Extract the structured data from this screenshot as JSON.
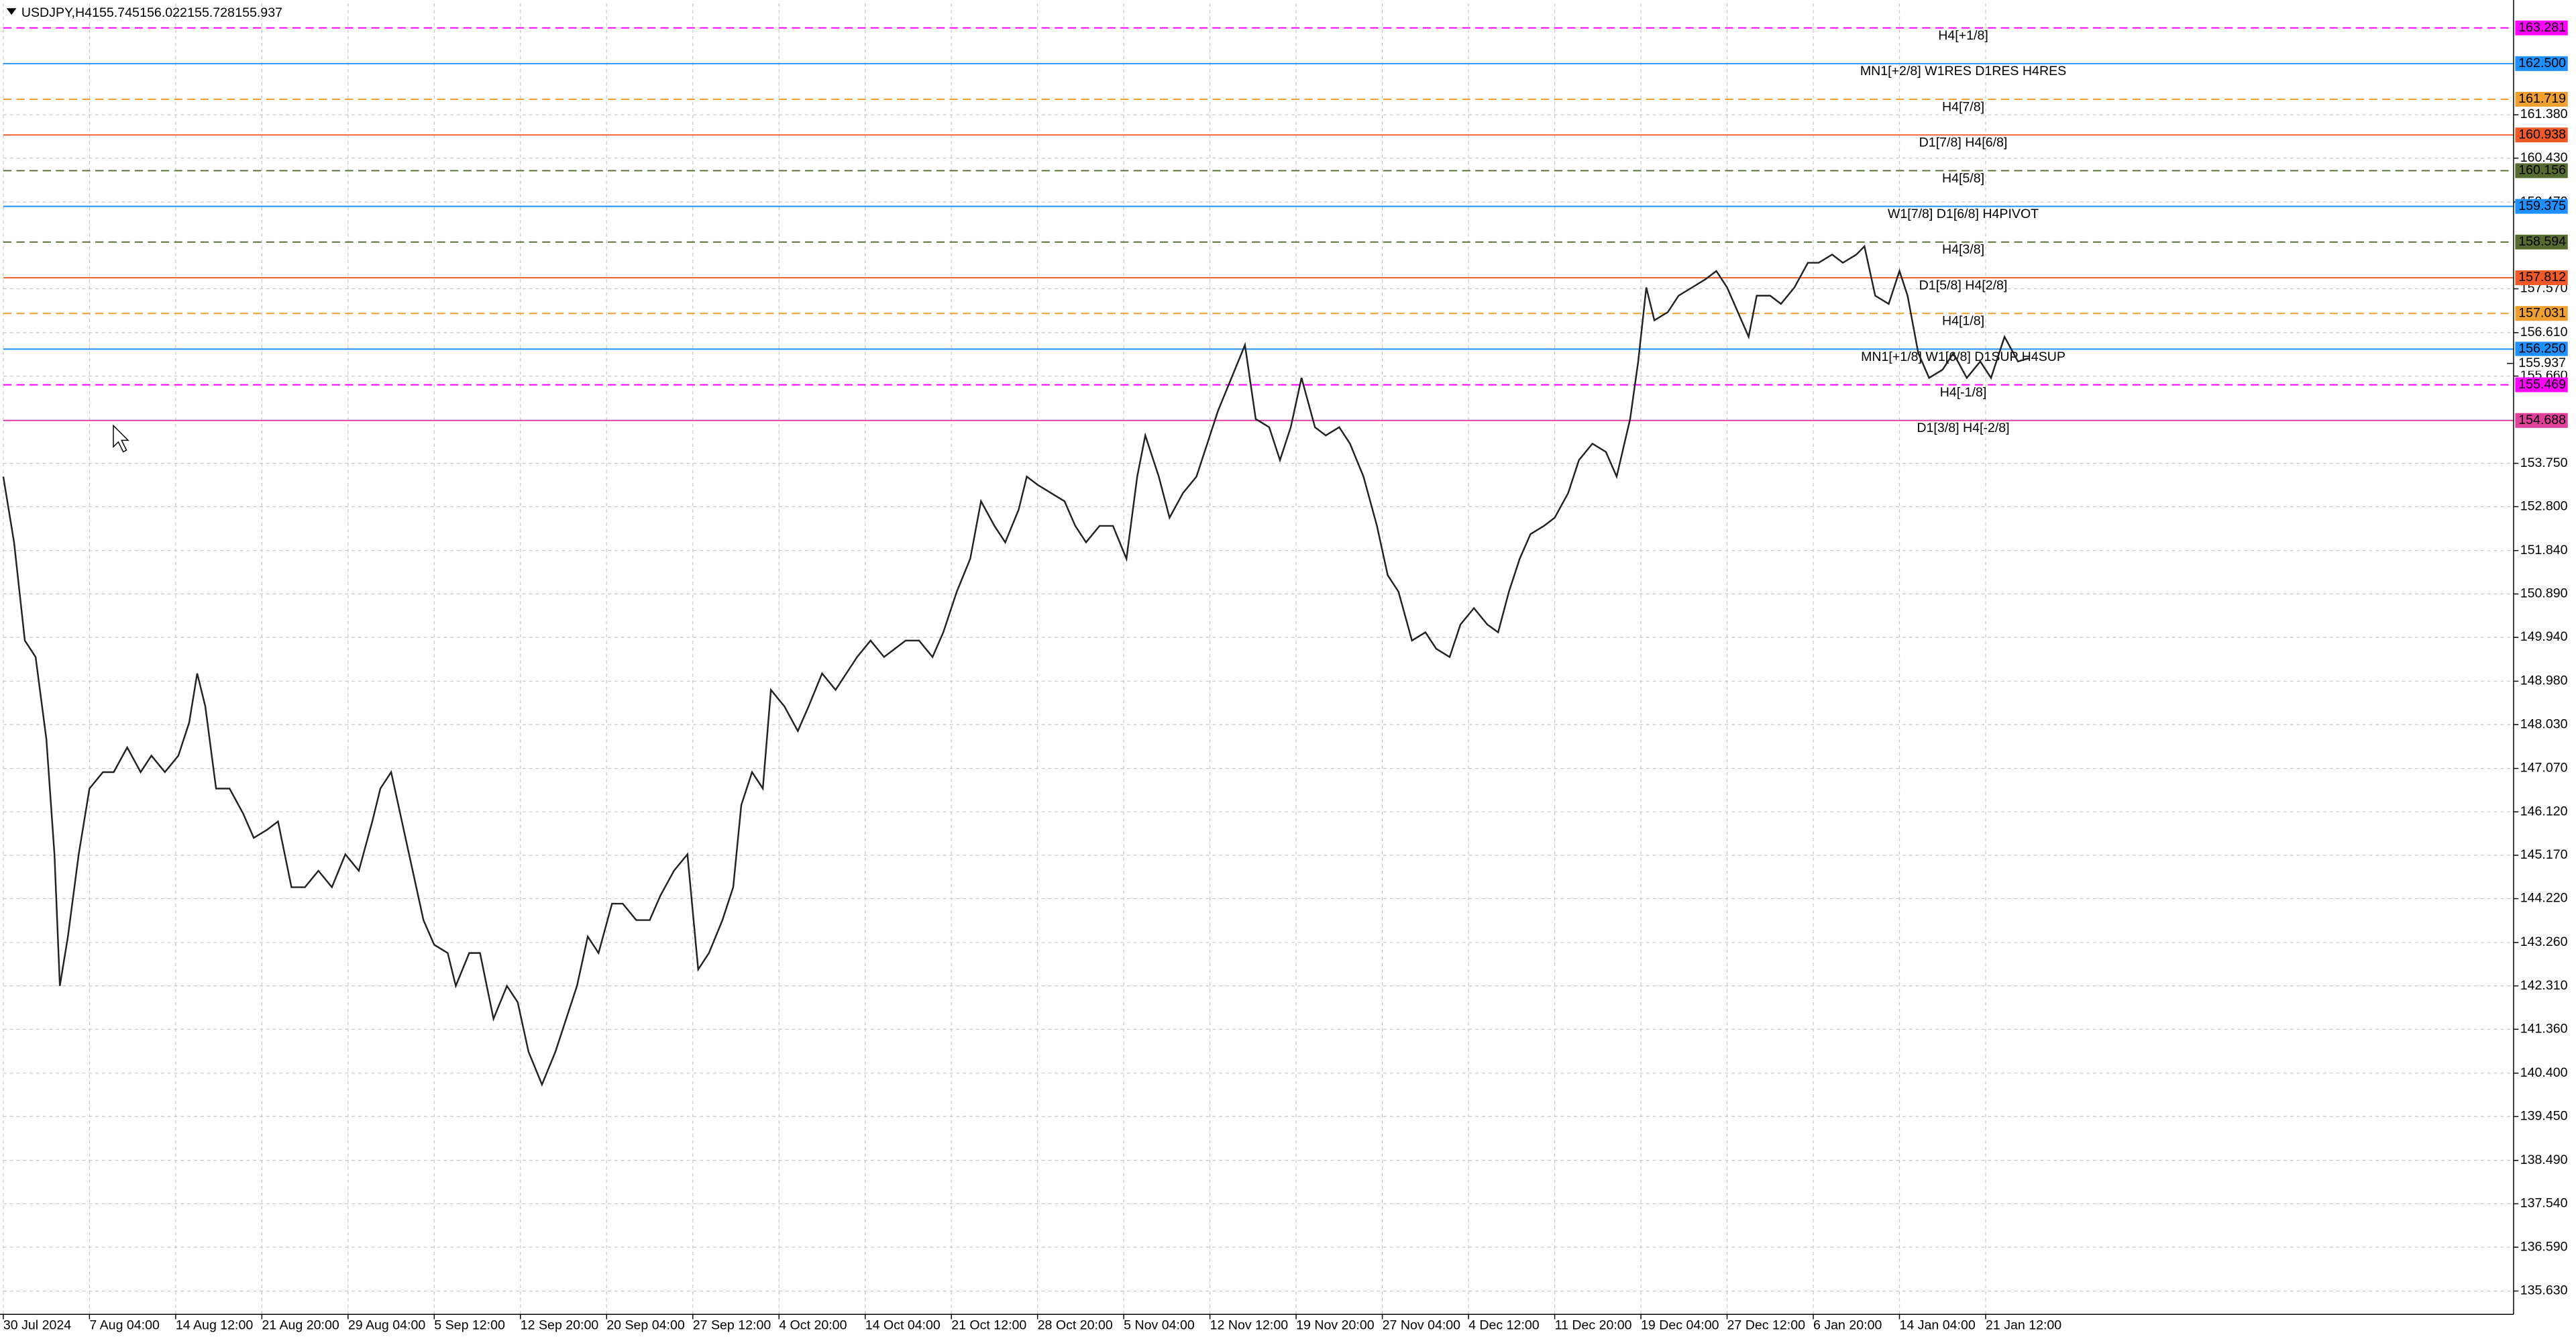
{
  "chart_data": {
    "type": "line",
    "header": {
      "symbol": "USDJPY,H4",
      "ohlc": [
        155.745,
        156.022,
        155.728,
        155.937
      ]
    },
    "grid": true,
    "xlim": [
      0,
      932
    ],
    "ylim": [
      135.12,
      163.82
    ],
    "xticks": [
      {
        "value": 0,
        "label": "30 Jul 2024"
      },
      {
        "value": 32,
        "label": "7 Aug 04:00"
      },
      {
        "value": 64,
        "label": "14 Aug 12:00"
      },
      {
        "value": 96,
        "label": "21 Aug 20:00"
      },
      {
        "value": 128,
        "label": "29 Aug 04:00"
      },
      {
        "value": 160,
        "label": "5 Sep 12:00"
      },
      {
        "value": 192,
        "label": "12 Sep 20:00"
      },
      {
        "value": 224,
        "label": "20 Sep 04:00"
      },
      {
        "value": 256,
        "label": "27 Sep 12:00"
      },
      {
        "value": 288,
        "label": "4 Oct 20:00"
      },
      {
        "value": 320,
        "label": "14 Oct 04:00"
      },
      {
        "value": 352,
        "label": "21 Oct 12:00"
      },
      {
        "value": 384,
        "label": "28 Oct 20:00"
      },
      {
        "value": 416,
        "label": "5 Nov 04:00"
      },
      {
        "value": 448,
        "label": "12 Nov 12:00"
      },
      {
        "value": 480,
        "label": "19 Nov 20:00"
      },
      {
        "value": 512,
        "label": "27 Nov 04:00"
      },
      {
        "value": 544,
        "label": "4 Dec 12:00"
      },
      {
        "value": 576,
        "label": "11 Dec 20:00"
      },
      {
        "value": 608,
        "label": "19 Dec 04:00"
      },
      {
        "value": 640,
        "label": "27 Dec 12:00"
      },
      {
        "value": 672,
        "label": "6 Jan 20:00"
      },
      {
        "value": 704,
        "label": "14 Jan 04:00"
      },
      {
        "value": 736,
        "label": "21 Jan 12:00"
      }
    ],
    "yticks": [
      {
        "value": 135.63,
        "label": "135.630"
      },
      {
        "value": 136.59,
        "label": "136.590"
      },
      {
        "value": 137.54,
        "label": "137.540"
      },
      {
        "value": 138.49,
        "label": "138.490"
      },
      {
        "value": 139.45,
        "label": "139.450"
      },
      {
        "value": 140.4,
        "label": "140.400"
      },
      {
        "value": 141.36,
        "label": "141.360"
      },
      {
        "value": 142.31,
        "label": "142.310"
      },
      {
        "value": 143.26,
        "label": "143.260"
      },
      {
        "value": 144.22,
        "label": "144.220"
      },
      {
        "value": 145.17,
        "label": "145.170"
      },
      {
        "value": 146.12,
        "label": "146.120"
      },
      {
        "value": 147.07,
        "label": "147.070"
      },
      {
        "value": 148.03,
        "label": "148.030"
      },
      {
        "value": 148.98,
        "label": "148.980"
      },
      {
        "value": 149.94,
        "label": "149.940"
      },
      {
        "value": 150.89,
        "label": "150.890"
      },
      {
        "value": 151.84,
        "label": "151.840"
      },
      {
        "value": 152.8,
        "label": "152.800"
      },
      {
        "value": 153.75,
        "label": "153.750"
      },
      {
        "value": 155.66,
        "label": "155.660"
      },
      {
        "value": 156.61,
        "label": "156.610"
      },
      {
        "value": 157.57,
        "label": "157.570"
      },
      {
        "value": 159.47,
        "label": "159.470"
      },
      {
        "value": 160.43,
        "label": "160.430"
      },
      {
        "value": 161.38,
        "label": "161.380"
      }
    ],
    "series": [
      {
        "name": "USDJPY",
        "color": "#222222",
        "x": [
          0,
          4,
          8,
          12,
          16,
          19,
          21,
          24,
          28,
          32,
          37,
          41,
          46,
          51,
          55,
          60,
          65,
          69,
          72,
          75,
          79,
          84,
          89,
          93,
          98,
          102,
          107,
          112,
          117,
          122,
          127,
          132,
          137,
          140,
          144,
          148,
          152,
          156,
          160,
          165,
          168,
          173,
          177,
          182,
          187,
          191,
          195,
          200,
          205,
          209,
          213,
          217,
          221,
          226,
          230,
          235,
          240,
          244,
          249,
          254,
          258,
          262,
          267,
          271,
          274,
          278,
          282,
          285,
          290,
          295,
          299,
          304,
          309,
          313,
          317,
          322,
          327,
          331,
          335,
          340,
          345,
          349,
          354,
          359,
          363,
          368,
          372,
          377,
          380,
          384,
          389,
          394,
          398,
          402,
          407,
          412,
          417,
          421,
          424,
          429,
          433,
          438,
          443,
          447,
          451,
          456,
          461,
          465,
          470,
          474,
          478,
          482,
          487,
          491,
          496,
          500,
          505,
          510,
          514,
          518,
          523,
          528,
          532,
          537,
          541,
          546,
          551,
          555,
          559,
          563,
          567,
          572,
          576,
          581,
          585,
          590,
          595,
          599,
          604,
          607,
          610,
          613,
          618,
          622,
          627,
          632,
          636,
          640,
          644,
          648,
          651,
          656,
          660,
          665,
          670,
          674,
          679,
          683,
          688,
          691,
          695,
          700,
          704,
          707,
          711,
          715,
          720,
          724,
          729,
          734,
          738,
          743,
          748,
          752
        ],
        "values": [
          153.46,
          152.02,
          149.87,
          149.51,
          147.71,
          145.19,
          142.31,
          143.39,
          145.19,
          146.63,
          146.99,
          146.99,
          147.53,
          146.99,
          147.35,
          146.99,
          147.35,
          148.07,
          149.15,
          148.43,
          146.63,
          146.63,
          146.09,
          145.55,
          145.73,
          145.91,
          144.47,
          144.47,
          144.83,
          144.47,
          145.19,
          144.83,
          145.91,
          146.63,
          146.99,
          145.91,
          144.83,
          143.75,
          143.21,
          143.03,
          142.31,
          143.03,
          143.03,
          141.59,
          142.31,
          141.95,
          140.87,
          140.15,
          140.87,
          141.59,
          142.31,
          143.39,
          143.03,
          144.11,
          144.11,
          143.75,
          143.75,
          144.29,
          144.83,
          145.19,
          142.67,
          143.03,
          143.75,
          144.47,
          146.27,
          146.99,
          146.63,
          148.79,
          148.43,
          147.89,
          148.43,
          149.15,
          148.79,
          149.15,
          149.51,
          149.87,
          149.51,
          149.69,
          149.87,
          149.87,
          149.51,
          150.05,
          150.94,
          151.66,
          152.92,
          152.38,
          152.02,
          152.74,
          153.46,
          153.28,
          153.1,
          152.92,
          152.38,
          152.02,
          152.38,
          152.38,
          151.66,
          153.46,
          154.36,
          153.46,
          152.56,
          153.1,
          153.46,
          154.18,
          154.9,
          155.62,
          156.34,
          154.72,
          154.54,
          153.82,
          154.54,
          155.62,
          154.54,
          154.36,
          154.54,
          154.18,
          153.46,
          152.38,
          151.3,
          150.94,
          149.87,
          150.05,
          149.69,
          149.51,
          150.22,
          150.58,
          150.22,
          150.05,
          150.94,
          151.66,
          152.2,
          152.38,
          152.56,
          153.1,
          153.82,
          154.18,
          154.0,
          153.46,
          154.72,
          155.98,
          157.6,
          156.88,
          157.06,
          157.42,
          157.6,
          157.78,
          157.96,
          157.6,
          157.06,
          156.52,
          157.42,
          157.42,
          157.24,
          157.6,
          158.14,
          158.14,
          158.32,
          158.14,
          158.32,
          158.5,
          157.42,
          157.24,
          157.96,
          157.42,
          156.16,
          155.62,
          155.8,
          156.16,
          155.62,
          155.98,
          155.62,
          156.52,
          155.98,
          156.05
        ]
      }
    ],
    "levels": [
      {
        "name": "H4[+1/8]",
        "price": 163.281,
        "price_label": "163.281",
        "color": "#ff00ff",
        "dashed": true
      },
      {
        "name": "MN1[+2/8] W1RES D1RES H4RES",
        "price": 162.5,
        "price_label": "162.500",
        "color": "#1e90ff",
        "dashed": false
      },
      {
        "name": "H4[7/8]",
        "price": 161.719,
        "price_label": "161.719",
        "color": "#f0a030",
        "dashed": true
      },
      {
        "name": "D1[7/8] H4[6/8]",
        "price": 160.938,
        "price_label": "160.938",
        "color": "#f05a28",
        "dashed": false
      },
      {
        "name": "H4[5/8]",
        "price": 160.156,
        "price_label": "160.156",
        "color": "#556b2f",
        "dashed": true
      },
      {
        "name": "W1[7/8] D1[6/8] H4PIVOT",
        "price": 159.375,
        "price_label": "159.375",
        "color": "#1e90ff",
        "dashed": false
      },
      {
        "name": "H4[3/8]",
        "price": 158.594,
        "price_label": "158.594",
        "color": "#556b2f",
        "dashed": true
      },
      {
        "name": "D1[5/8] H4[2/8]",
        "price": 157.812,
        "price_label": "157.812",
        "color": "#f05a28",
        "dashed": false
      },
      {
        "name": "H4[1/8]",
        "price": 157.031,
        "price_label": "157.031",
        "color": "#f0a030",
        "dashed": true
      },
      {
        "name": "MN1[+1/8] W1[6/8] D1SUP H4SUP",
        "price": 156.25,
        "price_label": "156.250",
        "color": "#1e90ff",
        "dashed": false
      },
      {
        "name": "H4[-1/8]",
        "price": 155.469,
        "price_label": "155.469",
        "color": "#ff00ff",
        "dashed": true
      },
      {
        "name": "D1[3/8] H4[-2/8]",
        "price": 154.688,
        "price_label": "154.688",
        "color": "#e0409a",
        "dashed": false
      }
    ]
  }
}
